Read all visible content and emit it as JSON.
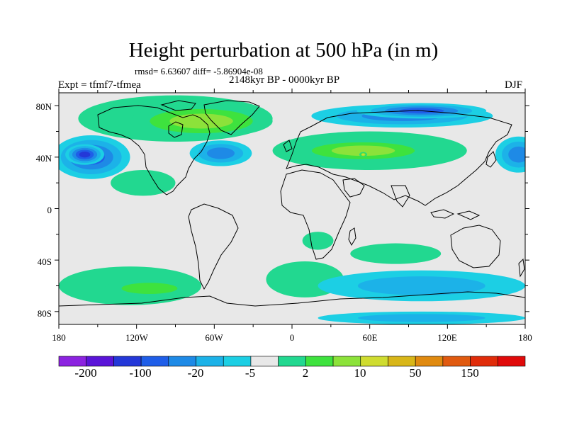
{
  "figure": {
    "title": "Height perturbation at 500 hPa (in m)",
    "rmsd_text": "rmsd= 6.63607  diff= -5.86904e-08",
    "experiment": "Expt = tfmf7-tfmea",
    "period": "2148kyr BP - 0000kyr BP",
    "season": "DJF"
  },
  "map": {
    "projection": "cylindrical-equidistant",
    "lon_range": [
      -180,
      180
    ],
    "lat_range": [
      -90,
      90
    ],
    "x_ticks": [
      "180",
      "120W",
      "60W",
      "0",
      "60E",
      "120E",
      "180"
    ],
    "y_ticks": [
      "80N",
      "40N",
      "0",
      "40S",
      "80S"
    ],
    "background_color": "#e8e8e8",
    "coastline_color": "#000000"
  },
  "colorbar": {
    "colors": [
      "#8c23e0",
      "#5a14d8",
      "#2438d8",
      "#1f5ee8",
      "#1e8ae6",
      "#1cb2e8",
      "#1ccfe4",
      "#e8e8e8",
      "#22d890",
      "#3ee23e",
      "#8ce23a",
      "#cfdc30",
      "#d8b618",
      "#e08a10",
      "#e05a10",
      "#e02c0a",
      "#e00a0a"
    ],
    "labels": [
      "-200",
      "-100",
      "-20",
      "-5",
      "2",
      "10",
      "50",
      "150"
    ]
  },
  "regions": [
    {
      "name": "north-pacific-low",
      "lon": -155,
      "lat": 40,
      "rx": 30,
      "ry": 17,
      "level": -4
    },
    {
      "name": "north-pacific-low-core",
      "lon": -160,
      "lat": 42,
      "rx": 15,
      "ry": 8,
      "level": -5
    },
    {
      "name": "siberia-band",
      "lon": 85,
      "lat": 72,
      "rx": 70,
      "ry": 9,
      "level": -3
    },
    {
      "name": "siberia-low",
      "lon": 100,
      "lat": 76,
      "rx": 50,
      "ry": 6,
      "level": -4
    },
    {
      "name": "north-atlantic-low",
      "lon": -55,
      "lat": 43,
      "rx": 24,
      "ry": 10,
      "level": -3
    },
    {
      "name": "west-pacific-low",
      "lon": 175,
      "lat": 42,
      "rx": 18,
      "ry": 14,
      "level": -3
    },
    {
      "name": "arctic-high",
      "lon": -90,
      "lat": 70,
      "rx": 75,
      "ry": 18,
      "level": 1
    },
    {
      "name": "greenland-high",
      "lon": -70,
      "lat": 68,
      "rx": 55,
      "ry": 13,
      "level": 3
    },
    {
      "name": "eurasia-high",
      "lon": 60,
      "lat": 45,
      "rx": 75,
      "ry": 15,
      "level": 1
    },
    {
      "name": "eurasia-high-core",
      "lon": 55,
      "lat": 45,
      "rx": 55,
      "ry": 9,
      "level": 3
    },
    {
      "name": "eurasia-max",
      "lon": 55,
      "lat": 42,
      "rx": 3,
      "ry": 2,
      "level": 4
    },
    {
      "name": "southern-ocean-high",
      "lon": -125,
      "lat": -60,
      "rx": 55,
      "ry": 15,
      "level": 1
    },
    {
      "name": "southern-ocean-high-core",
      "lon": -110,
      "lat": -62,
      "rx": 35,
      "ry": 7,
      "level": 2
    },
    {
      "name": "south-atlantic-high",
      "lon": 10,
      "lat": -55,
      "rx": 30,
      "ry": 14,
      "level": 1
    },
    {
      "name": "south-indian-low",
      "lon": 100,
      "lat": -60,
      "rx": 80,
      "ry": 12,
      "level": -2
    },
    {
      "name": "tropical-pacific-high",
      "lon": -115,
      "lat": 20,
      "rx": 25,
      "ry": 10,
      "level": 1
    },
    {
      "name": "africa-high",
      "lon": 20,
      "lat": -25,
      "rx": 12,
      "ry": 7,
      "level": 1
    },
    {
      "name": "indian-ocean-high",
      "lon": 80,
      "lat": -35,
      "rx": 35,
      "ry": 8,
      "level": 1
    },
    {
      "name": "antarctic-low",
      "lon": 100,
      "lat": -85,
      "rx": 80,
      "ry": 5,
      "level": -2
    }
  ]
}
